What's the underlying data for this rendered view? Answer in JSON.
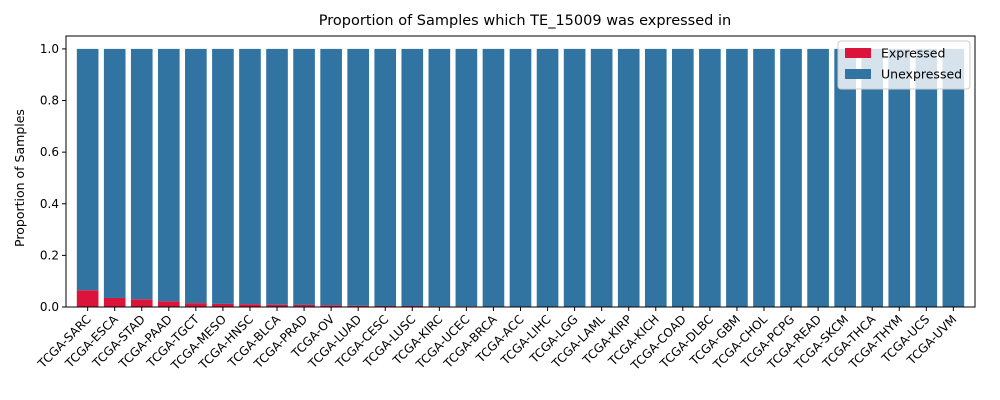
{
  "chart_data": {
    "type": "bar",
    "stacked": true,
    "title": "Proportion of Samples which TE_15009 was expressed in",
    "xlabel": "",
    "ylabel": "Proportion of Samples",
    "ylim": [
      0,
      1.05
    ],
    "yticks": [
      "0.0",
      "0.2",
      "0.4",
      "0.6",
      "0.8",
      "1.0"
    ],
    "ytick_values": [
      0,
      0.2,
      0.4,
      0.6,
      0.8,
      1.0
    ],
    "legend_position": "top-right",
    "categories": [
      "TCGA-SARC",
      "TCGA-ESCA",
      "TCGA-STAD",
      "TCGA-PAAD",
      "TCGA-TGCT",
      "TCGA-MESO",
      "TCGA-HNSC",
      "TCGA-BLCA",
      "TCGA-PRAD",
      "TCGA-OV",
      "TCGA-LUAD",
      "TCGA-CESC",
      "TCGA-LUSC",
      "TCGA-KIRC",
      "TCGA-UCEC",
      "TCGA-BRCA",
      "TCGA-ACC",
      "TCGA-LIHC",
      "TCGA-LGG",
      "TCGA-LAML",
      "TCGA-KIRP",
      "TCGA-KICH",
      "TCGA-COAD",
      "TCGA-DLBC",
      "TCGA-GBM",
      "TCGA-CHOL",
      "TCGA-PCPG",
      "TCGA-READ",
      "TCGA-SKCM",
      "TCGA-THCA",
      "TCGA-THYM",
      "TCGA-UCS",
      "TCGA-UVM"
    ],
    "series": [
      {
        "name": "Expressed",
        "color": "#dc143c",
        "values": [
          0.065,
          0.035,
          0.03,
          0.022,
          0.015,
          0.012,
          0.011,
          0.009,
          0.008,
          0.007,
          0.005,
          0.004,
          0.004,
          0.003,
          0.003,
          0.002,
          0,
          0,
          0,
          0,
          0,
          0,
          0,
          0,
          0,
          0,
          0,
          0,
          0,
          0,
          0,
          0,
          0
        ]
      },
      {
        "name": "Unexpressed",
        "color": "#3274a1",
        "values": [
          0.935,
          0.965,
          0.97,
          0.978,
          0.985,
          0.988,
          0.989,
          0.991,
          0.992,
          0.993,
          0.995,
          0.996,
          0.996,
          0.997,
          0.997,
          0.998,
          1,
          1,
          1,
          1,
          1,
          1,
          1,
          1,
          1,
          1,
          1,
          1,
          1,
          1,
          1,
          1,
          1
        ]
      }
    ]
  }
}
